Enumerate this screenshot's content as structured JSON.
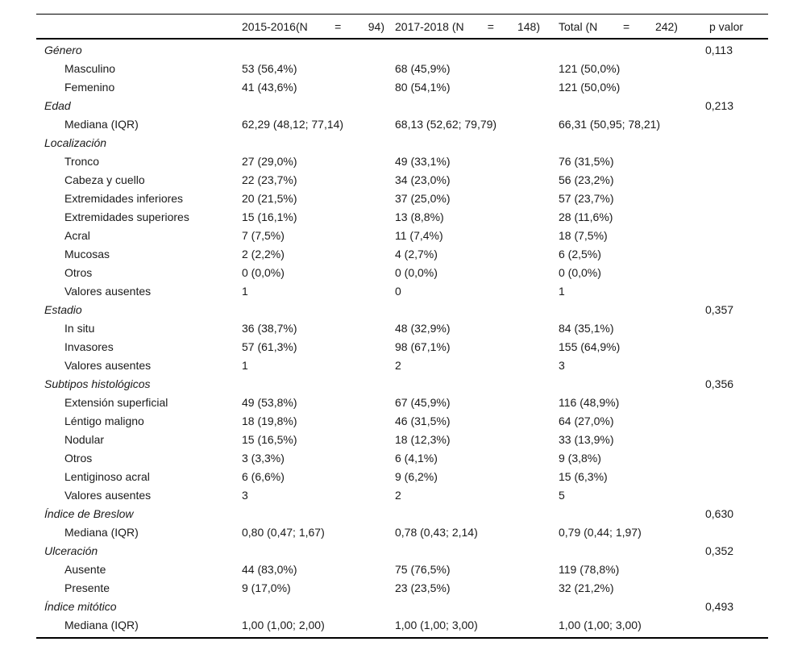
{
  "colors": {
    "background": "#ffffff",
    "text": "#1a1a1a",
    "rule": "#000000"
  },
  "table": {
    "header": {
      "col_2015_2016": [
        "2015-2016(N",
        "=",
        "94)"
      ],
      "col_2017_2018": [
        "2017-2018 (N",
        "=",
        "148)"
      ],
      "col_total": [
        "Total (N",
        "=",
        "242)"
      ],
      "p_label": "p valor"
    },
    "rows": [
      {
        "type": "section",
        "label": "Género",
        "c1": "",
        "c2": "",
        "c3": "",
        "p": "0,113"
      },
      {
        "type": "item",
        "label": "Masculino",
        "c1": "53 (56,4%)",
        "c2": "68 (45,9%)",
        "c3": "121 (50,0%)",
        "p": ""
      },
      {
        "type": "item",
        "label": "Femenino",
        "c1": "41 (43,6%)",
        "c2": "80 (54,1%)",
        "c3": "121 (50,0%)",
        "p": ""
      },
      {
        "type": "section",
        "label": "Edad",
        "c1": "",
        "c2": "",
        "c3": "",
        "p": "0,213"
      },
      {
        "type": "item",
        "label": "Mediana (IQR)",
        "c1": "62,29 (48,12; 77,14)",
        "c2": "68,13 (52,62; 79,79)",
        "c3": "66,31 (50,95; 78,21)",
        "p": ""
      },
      {
        "type": "section",
        "label": "Localización",
        "c1": "",
        "c2": "",
        "c3": "",
        "p": ""
      },
      {
        "type": "item",
        "label": "Tronco",
        "c1": "27 (29,0%)",
        "c2": "49 (33,1%)",
        "c3": "76 (31,5%)",
        "p": ""
      },
      {
        "type": "item",
        "label": "Cabeza y cuello",
        "c1": "22 (23,7%)",
        "c2": "34 (23,0%)",
        "c3": "56 (23,2%)",
        "p": ""
      },
      {
        "type": "item",
        "label": "Extremidades inferiores",
        "c1": "20 (21,5%)",
        "c2": "37 (25,0%)",
        "c3": "57 (23,7%)",
        "p": ""
      },
      {
        "type": "item",
        "label": "Extremidades superiores",
        "c1": "15 (16,1%)",
        "c2": "13 (8,8%)",
        "c3": "28 (11,6%)",
        "p": ""
      },
      {
        "type": "item",
        "label": "Acral",
        "c1": "7 (7,5%)",
        "c2": "11 (7,4%)",
        "c3": "18 (7,5%)",
        "p": ""
      },
      {
        "type": "item",
        "label": "Mucosas",
        "c1": "2 (2,2%)",
        "c2": "4 (2,7%)",
        "c3": "6 (2,5%)",
        "p": ""
      },
      {
        "type": "item",
        "label": "Otros",
        "c1": "0 (0,0%)",
        "c2": "0 (0,0%)",
        "c3": "0 (0,0%)",
        "p": ""
      },
      {
        "type": "item",
        "label": "Valores ausentes",
        "c1": "1",
        "c2": "0",
        "c3": "1",
        "p": ""
      },
      {
        "type": "section",
        "label": "Estadio",
        "c1": "",
        "c2": "",
        "c3": "",
        "p": "0,357"
      },
      {
        "type": "item",
        "label": "In situ",
        "c1": "36 (38,7%)",
        "c2": "48 (32,9%)",
        "c3": "84 (35,1%)",
        "p": ""
      },
      {
        "type": "item",
        "label": "Invasores",
        "c1": "57 (61,3%)",
        "c2": "98 (67,1%)",
        "c3": "155 (64,9%)",
        "p": ""
      },
      {
        "type": "item",
        "label": "Valores ausentes",
        "c1": "1",
        "c2": "2",
        "c3": "3",
        "p": ""
      },
      {
        "type": "section",
        "label": "Subtipos histológicos",
        "c1": "",
        "c2": "",
        "c3": "",
        "p": "0,356"
      },
      {
        "type": "item",
        "label": "Extensión superficial",
        "c1": "49 (53,8%)",
        "c2": "67 (45,9%)",
        "c3": "116 (48,9%)",
        "p": ""
      },
      {
        "type": "item",
        "label": "Léntigo maligno",
        "c1": "18 (19,8%)",
        "c2": "46 (31,5%)",
        "c3": "64 (27,0%)",
        "p": ""
      },
      {
        "type": "item",
        "label": "Nodular",
        "c1": "15 (16,5%)",
        "c2": "18 (12,3%)",
        "c3": "33 (13,9%)",
        "p": ""
      },
      {
        "type": "item",
        "label": "Otros",
        "c1": "3 (3,3%)",
        "c2": "6 (4,1%)",
        "c3": "9 (3,8%)",
        "p": ""
      },
      {
        "type": "item",
        "label": "Lentiginoso acral",
        "c1": "6 (6,6%)",
        "c2": "9 (6,2%)",
        "c3": "15 (6,3%)",
        "p": ""
      },
      {
        "type": "item",
        "label": "Valores ausentes",
        "c1": "3",
        "c2": "2",
        "c3": "5",
        "p": ""
      },
      {
        "type": "section",
        "label": "Índice de Breslow",
        "c1": "",
        "c2": "",
        "c3": "",
        "p": "0,630"
      },
      {
        "type": "item",
        "label": "Mediana (IQR)",
        "c1": "0,80 (0,47; 1,67)",
        "c2": "0,78 (0,43; 2,14)",
        "c3": "0,79 (0,44; 1,97)",
        "p": ""
      },
      {
        "type": "section",
        "label": "Ulceración",
        "c1": "",
        "c2": "",
        "c3": "",
        "p": "0,352"
      },
      {
        "type": "item",
        "label": "Ausente",
        "c1": "44 (83,0%)",
        "c2": "75 (76,5%)",
        "c3": "119 (78,8%)",
        "p": ""
      },
      {
        "type": "item",
        "label": "Presente",
        "c1": "9 (17,0%)",
        "c2": "23 (23,5%)",
        "c3": "32 (21,2%)",
        "p": ""
      },
      {
        "type": "section",
        "label": "Índice mitótico",
        "c1": "",
        "c2": "",
        "c3": "",
        "p": "0,493"
      },
      {
        "type": "item",
        "label": "Mediana (IQR)",
        "c1": "1,00 (1,00; 2,00)",
        "c2": "1,00 (1,00; 3,00)",
        "c3": "1,00 (1,00; 3,00)",
        "p": ""
      }
    ]
  }
}
